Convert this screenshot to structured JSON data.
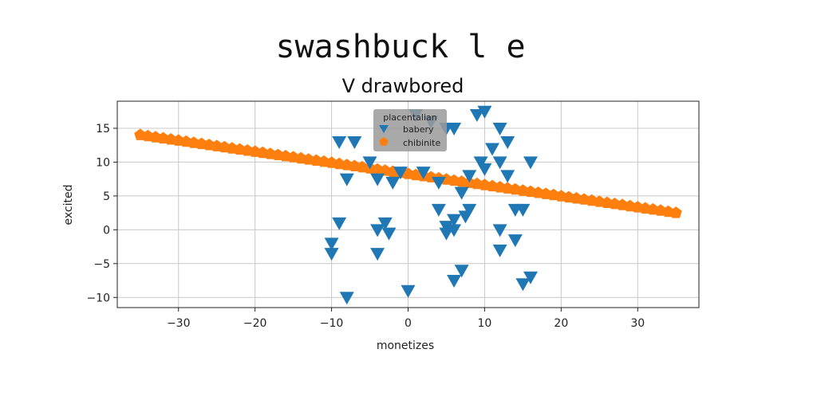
{
  "chart_data": {
    "type": "scatter",
    "suptitle": "swashbuck l e",
    "title": "V drawbored",
    "xlabel": "monetizes",
    "ylabel": "excited",
    "xlim": [
      -38,
      38
    ],
    "ylim": [
      -11.5,
      19
    ],
    "xticks": [
      -30,
      -20,
      -10,
      0,
      10,
      20,
      30
    ],
    "xtick_labels": [
      "−30",
      "−20",
      "−10",
      "0",
      "10",
      "20",
      "30"
    ],
    "yticks": [
      -10,
      -5,
      0,
      5,
      10,
      15
    ],
    "ytick_labels": [
      "−10",
      "−5",
      "0",
      "5",
      "10",
      "15"
    ],
    "grid": true,
    "legend": {
      "title": "placentalian",
      "placement": "top-center"
    },
    "colors": {
      "babery": "#1f77b4",
      "chibinite": "#ff7f0e"
    },
    "series": [
      {
        "name": "babery",
        "marker": "triangle-down",
        "points": [
          [
            -9,
            13
          ],
          [
            -7,
            13
          ],
          [
            -8,
            -10
          ],
          [
            -9,
            1
          ],
          [
            -10,
            -2
          ],
          [
            -10,
            -3.5
          ],
          [
            -8,
            7.5
          ],
          [
            -5,
            10
          ],
          [
            -4,
            7.5
          ],
          [
            -2,
            7
          ],
          [
            -3,
            1
          ],
          [
            -2.5,
            -0.5
          ],
          [
            -4,
            0
          ],
          [
            -4,
            -3.5
          ],
          [
            -1,
            8.5
          ],
          [
            0,
            -9
          ],
          [
            1,
            17
          ],
          [
            3,
            16
          ],
          [
            2,
            8.5
          ],
          [
            4,
            7
          ],
          [
            5,
            15
          ],
          [
            6,
            15
          ],
          [
            4,
            3
          ],
          [
            5,
            0.5
          ],
          [
            5,
            -0.5
          ],
          [
            6,
            0
          ],
          [
            6,
            1.5
          ],
          [
            6,
            -7.5
          ],
          [
            7,
            -6
          ],
          [
            7,
            5.5
          ],
          [
            7.5,
            2
          ],
          [
            8,
            3
          ],
          [
            8,
            8
          ],
          [
            9,
            17
          ],
          [
            10,
            17.5
          ],
          [
            9.5,
            10
          ],
          [
            10,
            9
          ],
          [
            11,
            12
          ],
          [
            12,
            15
          ],
          [
            13,
            13
          ],
          [
            12,
            10
          ],
          [
            13,
            8
          ],
          [
            12,
            0
          ],
          [
            12,
            -3
          ],
          [
            14,
            -1.5
          ],
          [
            14,
            3
          ],
          [
            15,
            3
          ],
          [
            15,
            -8
          ],
          [
            16,
            -7
          ],
          [
            16,
            10
          ]
        ]
      },
      {
        "name": "chibinite",
        "marker": "pentagon",
        "line": {
          "x0": -35,
          "x1": 35,
          "y0": 14,
          "y1": 2.5,
          "count": 71
        }
      }
    ]
  }
}
